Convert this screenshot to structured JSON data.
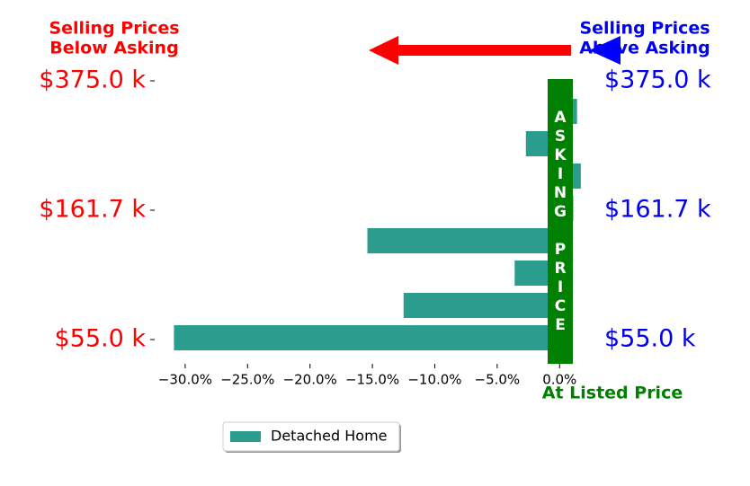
{
  "chart_data": {
    "type": "barh",
    "categories": [
      "$55.0 k",
      null,
      null,
      null,
      "$161.7 k",
      null,
      null,
      null,
      "$375.0 k"
    ],
    "series": [
      {
        "name": "Detached Home",
        "color": "#2a9d8f",
        "values": [
          -30.9,
          -12.5,
          -3.6,
          -15.4,
          1.1,
          1.7,
          -2.7,
          1.4,
          null
        ]
      }
    ],
    "xlim": [
      -32.3,
      2.0
    ],
    "xticks": [
      {
        "value": -30,
        "label": "−30.0%"
      },
      {
        "value": -25,
        "label": "−25.0%"
      },
      {
        "value": -20,
        "label": "−20.0%"
      },
      {
        "value": -15,
        "label": "−15.0%"
      },
      {
        "value": -10,
        "label": "−10.0%"
      },
      {
        "value": -5,
        "label": "−5.0%"
      },
      {
        "value": 0,
        "label": "0.0%"
      }
    ],
    "below_label": [
      "Selling Prices",
      "Below Asking"
    ],
    "above_label": [
      "Selling Prices",
      "Above Asking"
    ],
    "asking_label": "ASKING PRICE",
    "listed_label": "At Listed Price",
    "left_label_color": "#ff0000",
    "right_label_color": "#0000ee",
    "asking_color": "#008000"
  }
}
